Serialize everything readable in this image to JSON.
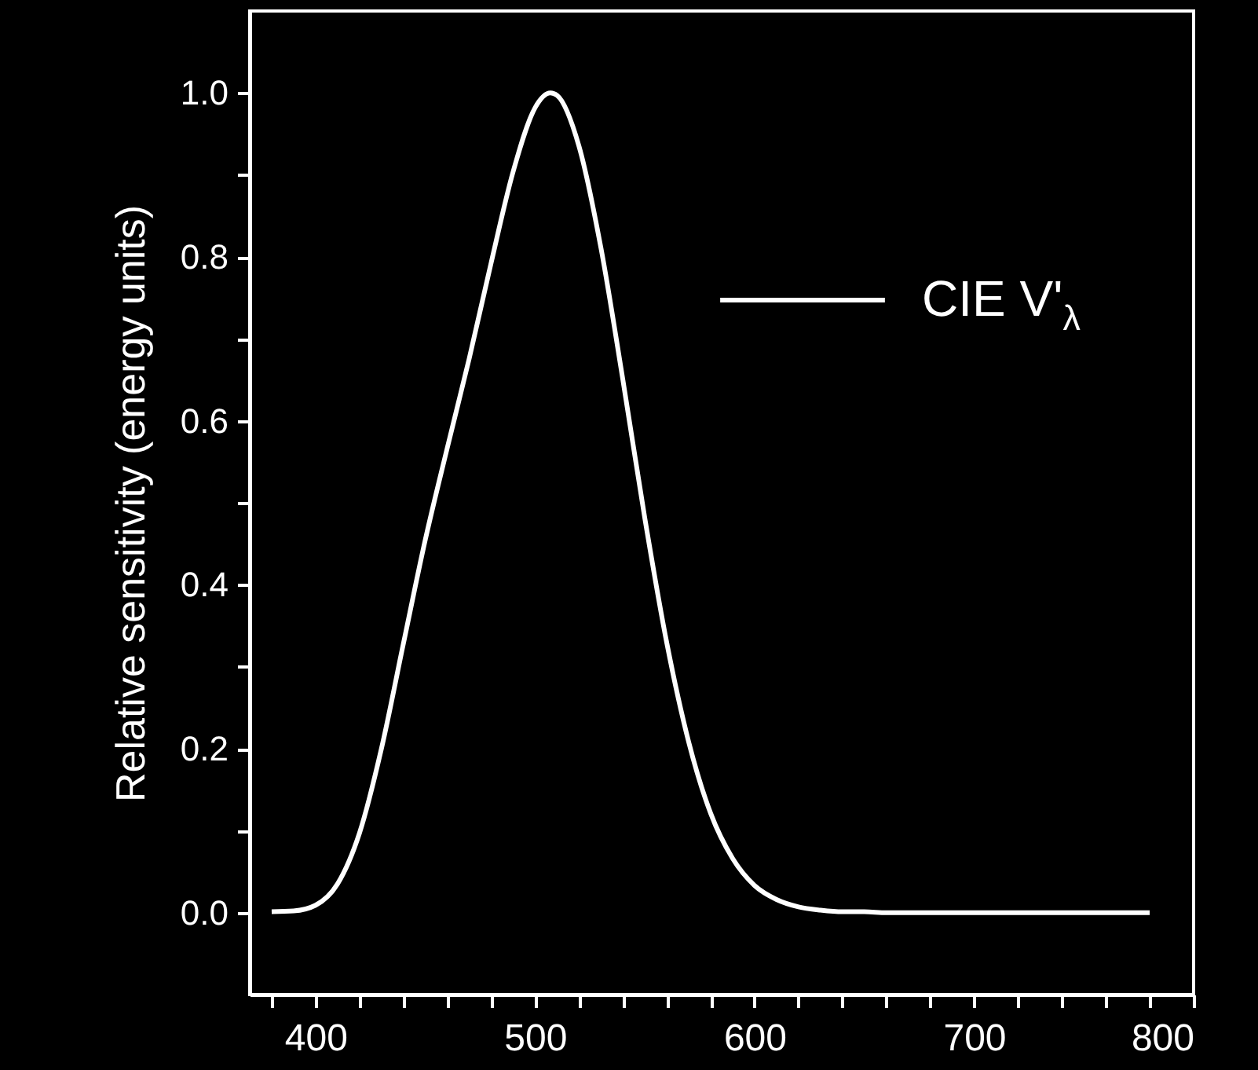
{
  "chart_data": {
    "type": "line",
    "ylabel": "Relative sensitivity (energy units)",
    "x": [
      380,
      390,
      400,
      410,
      420,
      430,
      440,
      450,
      460,
      470,
      480,
      490,
      500,
      507,
      510,
      520,
      530,
      540,
      550,
      560,
      570,
      580,
      590,
      600,
      610,
      620,
      630,
      640,
      650,
      660,
      680,
      700,
      750,
      780
    ],
    "series": [
      {
        "name": "CIE V'$_{λ}$",
        "color": "#ffffff",
        "values": [
          0.001,
          0.002,
          0.009,
          0.035,
          0.097,
          0.2,
          0.328,
          0.455,
          0.567,
          0.676,
          0.793,
          0.904,
          0.982,
          1.0,
          0.997,
          0.935,
          0.811,
          0.65,
          0.481,
          0.329,
          0.208,
          0.121,
          0.066,
          0.033,
          0.016,
          0.007,
          0.003,
          0.001,
          0.001,
          0,
          0,
          0,
          0,
          0
        ]
      }
    ],
    "xlim": [
      370,
      800
    ],
    "xticks": [
      {
        "value": 380,
        "label": null
      },
      400,
      {
        "value": 420,
        "label": null
      },
      {
        "value": 440,
        "label": null
      },
      {
        "value": 460,
        "label": null
      },
      {
        "value": 480,
        "label": null
      },
      500,
      {
        "value": 520,
        "label": null
      },
      {
        "value": 540,
        "label": null
      },
      {
        "value": 560,
        "label": null
      },
      {
        "value": 580,
        "label": null
      },
      600,
      {
        "value": 620,
        "label": null
      },
      {
        "value": 640,
        "label": null
      },
      {
        "value": 660,
        "label": null
      },
      {
        "value": 680,
        "label": null
      },
      700,
      {
        "value": 720,
        "label": null
      },
      {
        "value": 740,
        "label": null
      },
      {
        "value": 760,
        "label": null
      },
      {
        "value": 780,
        "label": null
      },
      800
    ],
    "ylim": [
      -0.1,
      1.1
    ],
    "yticks": [
      {
        "value": 0,
        "label": "0.0"
      },
      {
        "value": 0.1,
        "label": null
      },
      0.2,
      {
        "value": 0.3,
        "label": null
      },
      0.4,
      {
        "value": 0.5,
        "label": null
      },
      0.6,
      {
        "value": 0.7,
        "label": null
      },
      0.8,
      {
        "value": 0.9,
        "label": null
      },
      {
        "value": 1,
        "label": "1.0"
      }
    ],
    "grid": false,
    "legend": "top right",
    "line_style": "solid",
    "marker": "none"
  }
}
